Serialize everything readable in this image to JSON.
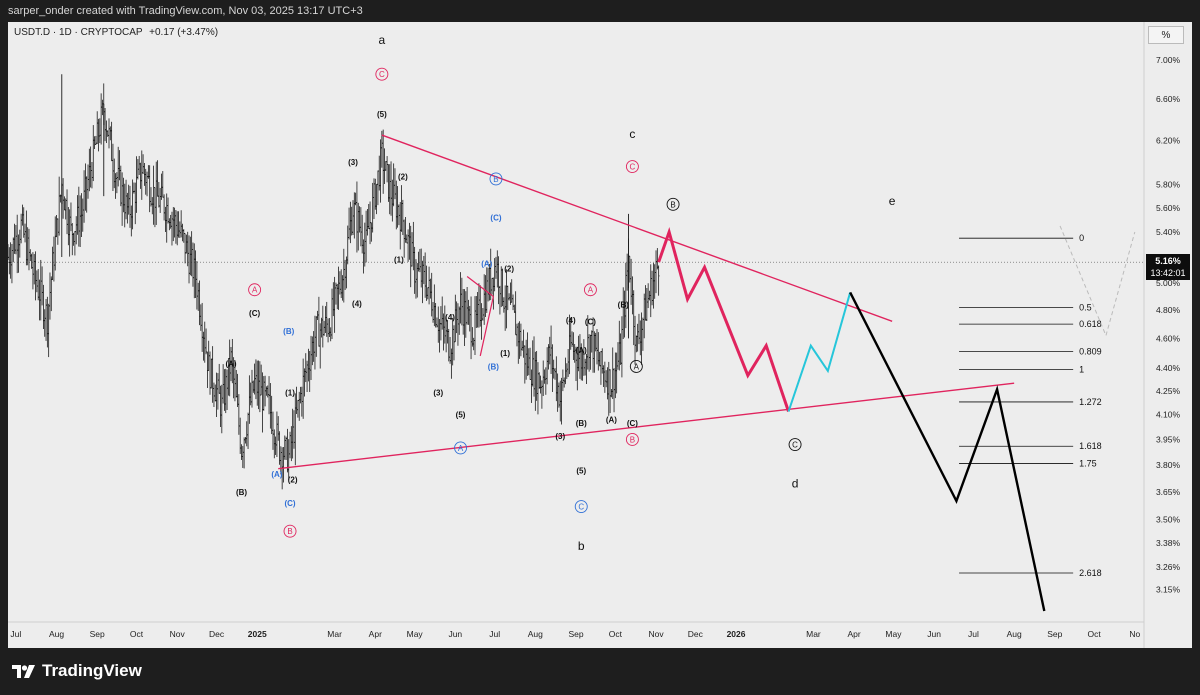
{
  "header": {
    "credit": "sarper_onder created with TradingView.com, Nov 03, 2025 13:17 UTC+3"
  },
  "legend": {
    "symbol": "USDT.D · 1D · CRYPTOCAP",
    "change": "+0.17 (+3.47%)"
  },
  "scale_unit": "%",
  "price_tag": {
    "value": "5.16%",
    "countdown": "13:42:01"
  },
  "footer": {
    "brand": "TradingView"
  },
  "colors": {
    "background": "#ededed",
    "frame": "#1e1e1e",
    "candles": "#1a1a1a",
    "trendline": "#e0245e",
    "projection_pink": "#e0245e",
    "projection_cyan": "#26c6da",
    "projection_black": "#000000",
    "blue_label": "#2f6fd6",
    "pink_label": "#e0245e"
  },
  "chart_data": {
    "type": "line",
    "series_type": "candlestick (approximated as close path)",
    "y_scale": "log",
    "ylim": [
      3.0,
      7.3
    ],
    "y_ticks": [
      "7.00%",
      "6.60%",
      "6.20%",
      "5.80%",
      "5.60%",
      "5.40%",
      "5.20%",
      "5.00%",
      "4.80%",
      "4.60%",
      "4.40%",
      "4.25%",
      "4.10%",
      "3.95%",
      "3.80%",
      "3.65%",
      "3.50%",
      "3.38%",
      "3.26%",
      "3.15%"
    ],
    "y_tick_values": [
      7.0,
      6.6,
      6.2,
      5.8,
      5.6,
      5.4,
      5.2,
      5.0,
      4.8,
      4.6,
      4.4,
      4.25,
      4.1,
      3.95,
      3.8,
      3.65,
      3.5,
      3.38,
      3.26,
      3.15
    ],
    "x_ticks": [
      "Jul",
      "Aug",
      "Sep",
      "Oct",
      "Nov",
      "Dec",
      "2025",
      "Mar",
      "Apr",
      "May",
      "Jun",
      "Jul",
      "Aug",
      "Sep",
      "Oct",
      "Nov",
      "Dec",
      "2026",
      "Mar",
      "Apr",
      "May",
      "Jun",
      "Jul",
      "Aug",
      "Sep",
      "Oct",
      "No"
    ],
    "x_tick_dates": [
      "2024-07-01",
      "2024-08-01",
      "2024-09-01",
      "2024-10-01",
      "2024-11-01",
      "2024-12-01",
      "2025-01-01",
      "2025-03-01",
      "2025-04-01",
      "2025-05-01",
      "2025-06-01",
      "2025-07-01",
      "2025-08-01",
      "2025-09-01",
      "2025-10-01",
      "2025-11-01",
      "2025-12-01",
      "2026-01-01",
      "2026-03-01",
      "2026-04-01",
      "2026-05-01",
      "2026-06-01",
      "2026-07-01",
      "2026-08-01",
      "2026-09-01",
      "2026-10-01",
      "2026-11-01"
    ],
    "bold_x_ticks": [
      "2025",
      "2026"
    ],
    "price_series": [
      [
        "2024-06-25",
        5.2
      ],
      [
        "2024-07-05",
        5.45
      ],
      [
        "2024-07-15",
        5.05
      ],
      [
        "2024-07-25",
        4.75
      ],
      [
        "2024-08-05",
        5.8
      ],
      [
        "2024-08-12",
        5.4
      ],
      [
        "2024-08-20",
        5.55
      ],
      [
        "2024-09-06",
        6.5
      ],
      [
        "2024-09-15",
        5.9
      ],
      [
        "2024-09-25",
        5.55
      ],
      [
        "2024-10-05",
        5.95
      ],
      [
        "2024-10-15",
        5.7
      ],
      [
        "2024-10-25",
        5.6
      ],
      [
        "2024-11-05",
        5.35
      ],
      [
        "2024-11-15",
        5.05
      ],
      [
        "2024-11-25",
        4.4
      ],
      [
        "2024-12-05",
        4.15
      ],
      [
        "2024-12-12",
        4.45
      ],
      [
        "2024-12-20",
        3.9
      ],
      [
        "2024-12-30",
        4.3
      ],
      [
        "2025-01-10",
        4.15
      ],
      [
        "2025-01-18",
        3.9
      ],
      [
        "2025-01-25",
        3.85
      ],
      [
        "2025-02-05",
        4.3
      ],
      [
        "2025-02-15",
        4.65
      ],
      [
        "2025-02-25",
        4.7
      ],
      [
        "2025-03-08",
        5.1
      ],
      [
        "2025-03-15",
        5.6
      ],
      [
        "2025-03-25",
        5.3
      ],
      [
        "2025-04-06",
        6.05
      ],
      [
        "2025-04-12",
        5.75
      ],
      [
        "2025-04-22",
        5.5
      ],
      [
        "2025-05-01",
        5.1
      ],
      [
        "2025-05-10",
        5.0
      ],
      [
        "2025-05-20",
        4.7
      ],
      [
        "2025-05-28",
        4.55
      ],
      [
        "2025-06-05",
        4.85
      ],
      [
        "2025-06-15",
        4.65
      ],
      [
        "2025-06-25",
        4.95
      ],
      [
        "2025-07-02",
        5.15
      ],
      [
        "2025-07-08",
        4.9
      ],
      [
        "2025-07-15",
        4.75
      ],
      [
        "2025-07-25",
        4.45
      ],
      [
        "2025-08-05",
        4.3
      ],
      [
        "2025-08-12",
        4.5
      ],
      [
        "2025-08-20",
        4.2
      ],
      [
        "2025-08-28",
        4.55
      ],
      [
        "2025-09-05",
        4.45
      ],
      [
        "2025-09-12",
        4.6
      ],
      [
        "2025-09-20",
        4.4
      ],
      [
        "2025-09-28",
        4.3
      ],
      [
        "2025-10-05",
        4.5
      ],
      [
        "2025-10-11",
        5.2
      ],
      [
        "2025-10-17",
        4.55
      ],
      [
        "2025-10-25",
        4.85
      ],
      [
        "2025-11-03",
        5.16
      ]
    ],
    "projection_pink": [
      [
        "2025-11-03",
        5.16
      ],
      [
        "2025-11-11",
        5.4
      ],
      [
        "2025-11-25",
        4.88
      ],
      [
        "2025-12-08",
        5.12
      ],
      [
        "2026-01-10",
        4.35
      ],
      [
        "2026-01-24",
        4.55
      ],
      [
        "2026-02-10",
        4.12
      ]
    ],
    "projection_cyan": [
      [
        "2026-02-10",
        4.12
      ],
      [
        "2026-02-27",
        4.55
      ],
      [
        "2026-03-12",
        4.38
      ],
      [
        "2026-03-29",
        4.93
      ]
    ],
    "projection_black": [
      [
        "2026-03-29",
        4.93
      ],
      [
        "2026-06-18",
        3.6
      ],
      [
        "2026-07-19",
        4.26
      ],
      [
        "2026-08-24",
        3.05
      ]
    ],
    "trendlines": [
      {
        "name": "upper",
        "from": [
          "2025-04-06",
          6.25
        ],
        "to": [
          "2026-04-30",
          4.72
        ]
      },
      {
        "name": "lower",
        "from": [
          "2025-01-17",
          3.78
        ],
        "to": [
          "2026-08-01",
          4.3
        ]
      }
    ],
    "fib_levels": [
      {
        "label": "0",
        "value": 5.35
      },
      {
        "label": "0.5",
        "value": 4.82
      },
      {
        "label": "0.618",
        "value": 4.7
      },
      {
        "label": "0.809",
        "value": 4.51
      },
      {
        "label": "1",
        "value": 4.39
      },
      {
        "label": "1.272",
        "value": 4.18
      },
      {
        "label": "1.618",
        "value": 3.91
      },
      {
        "label": "1.75",
        "value": 3.81
      },
      {
        "label": "2.618",
        "value": 3.23
      }
    ],
    "wave_labels": [
      {
        "text": "a",
        "x": "2025-04-06",
        "y": 7.2,
        "style": "plain-large"
      },
      {
        "text": "C",
        "x": "2025-04-06",
        "y": 6.85,
        "style": "circle-pink"
      },
      {
        "text": "(5)",
        "x": "2025-04-06",
        "y": 6.45,
        "style": "plain"
      },
      {
        "text": "(3)",
        "x": "2025-03-15",
        "y": 6.0,
        "style": "plain"
      },
      {
        "text": "(2)",
        "x": "2025-04-22",
        "y": 5.87,
        "style": "plain"
      },
      {
        "text": "B",
        "x": "2025-07-02",
        "y": 5.85,
        "style": "circle-blue"
      },
      {
        "text": "(C)",
        "x": "2025-07-02",
        "y": 5.52,
        "style": "blue"
      },
      {
        "text": "(1)",
        "x": "2025-04-19",
        "y": 5.18,
        "style": "plain"
      },
      {
        "text": "(A)",
        "x": "2025-06-25",
        "y": 5.15,
        "style": "blue"
      },
      {
        "text": "(2)",
        "x": "2025-07-12",
        "y": 5.11,
        "style": "plain"
      },
      {
        "text": "A",
        "x": "2024-12-30",
        "y": 4.95,
        "style": "circle-pink"
      },
      {
        "text": "(C)",
        "x": "2024-12-30",
        "y": 4.78,
        "style": "plain"
      },
      {
        "text": "(B)",
        "x": "2025-01-25",
        "y": 4.65,
        "style": "blue"
      },
      {
        "text": "(A)",
        "x": "2024-12-12",
        "y": 4.43,
        "style": "plain"
      },
      {
        "text": "(4)",
        "x": "2025-03-18",
        "y": 4.85,
        "style": "plain"
      },
      {
        "text": "(4)",
        "x": "2025-05-28",
        "y": 4.75,
        "style": "plain"
      },
      {
        "text": "(1)",
        "x": "2025-07-09",
        "y": 4.5,
        "style": "plain"
      },
      {
        "text": "(B)",
        "x": "2025-06-30",
        "y": 4.41,
        "style": "blue"
      },
      {
        "text": "(1)",
        "x": "2025-01-26",
        "y": 4.24,
        "style": "plain"
      },
      {
        "text": "(3)",
        "x": "2025-05-19",
        "y": 4.24,
        "style": "plain"
      },
      {
        "text": "(5)",
        "x": "2025-06-05",
        "y": 4.1,
        "style": "plain"
      },
      {
        "text": "A",
        "x": "2025-06-05",
        "y": 3.9,
        "style": "circle-blue"
      },
      {
        "text": "(A)",
        "x": "2025-01-16",
        "y": 3.75,
        "style": "blue"
      },
      {
        "text": "(2)",
        "x": "2025-01-28",
        "y": 3.72,
        "style": "plain"
      },
      {
        "text": "(B)",
        "x": "2024-12-20",
        "y": 3.65,
        "style": "plain"
      },
      {
        "text": "(C)",
        "x": "2025-01-26",
        "y": 3.59,
        "style": "blue"
      },
      {
        "text": "B",
        "x": "2025-01-26",
        "y": 3.44,
        "style": "circle-pink"
      },
      {
        "text": "(4)",
        "x": "2025-08-28",
        "y": 4.73,
        "style": "plain"
      },
      {
        "text": "A",
        "x": "2025-09-12",
        "y": 4.95,
        "style": "circle-pink"
      },
      {
        "text": "(C)",
        "x": "2025-09-12",
        "y": 4.72,
        "style": "plain"
      },
      {
        "text": "(B)",
        "x": "2025-10-07",
        "y": 4.84,
        "style": "plain"
      },
      {
        "text": "(A)",
        "x": "2025-09-05",
        "y": 4.52,
        "style": "plain"
      },
      {
        "text": "A",
        "x": "2025-10-17",
        "y": 4.41,
        "style": "circle-black"
      },
      {
        "text": "(3)",
        "x": "2025-08-20",
        "y": 3.97,
        "style": "plain"
      },
      {
        "text": "(B)",
        "x": "2025-09-05",
        "y": 4.05,
        "style": "plain"
      },
      {
        "text": "(A)",
        "x": "2025-09-28",
        "y": 4.07,
        "style": "plain"
      },
      {
        "text": "(C)",
        "x": "2025-10-14",
        "y": 4.05,
        "style": "plain"
      },
      {
        "text": "B",
        "x": "2025-10-14",
        "y": 3.95,
        "style": "circle-pink"
      },
      {
        "text": "(5)",
        "x": "2025-09-05",
        "y": 3.77,
        "style": "plain"
      },
      {
        "text": "C",
        "x": "2025-09-05",
        "y": 3.57,
        "style": "circle-blue"
      },
      {
        "text": "b",
        "x": "2025-09-05",
        "y": 3.36,
        "style": "plain-large"
      },
      {
        "text": "c",
        "x": "2025-10-14",
        "y": 6.25,
        "style": "plain-large"
      },
      {
        "text": "C",
        "x": "2025-10-14",
        "y": 5.96,
        "style": "circle-pink"
      },
      {
        "text": "B",
        "x": "2025-11-14",
        "y": 5.63,
        "style": "circle-black"
      },
      {
        "text": "e",
        "x": "2026-04-30",
        "y": 5.65,
        "style": "plain-large"
      },
      {
        "text": "C",
        "x": "2026-02-15",
        "y": 3.92,
        "style": "circle-black"
      },
      {
        "text": "d",
        "x": "2026-02-15",
        "y": 3.69,
        "style": "plain-large"
      }
    ]
  }
}
